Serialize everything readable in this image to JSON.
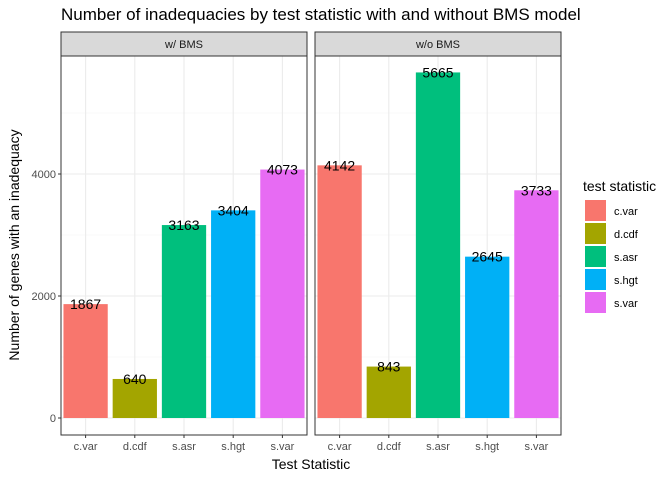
{
  "chart_data": {
    "type": "bar",
    "title": "Number of inadequacies by test statistic with and without BMS model",
    "xlabel": "Test Statistic",
    "ylabel": "Number of genes with an inadequacy",
    "categories": [
      "c.var",
      "d.cdf",
      "s.asr",
      "s.hgt",
      "s.var"
    ],
    "yticks": [
      0,
      2000,
      4000
    ],
    "ylim": [
      0,
      5950
    ],
    "grid": true,
    "legend": {
      "title": "test statistic",
      "placement": "right",
      "entries": [
        "c.var",
        "d.cdf",
        "s.asr",
        "s.hgt",
        "s.var"
      ]
    },
    "colors": [
      "#F8766D",
      "#A3A500",
      "#00BF7D",
      "#00B0F6",
      "#E76BF3"
    ],
    "panels": [
      {
        "name": "w/ BMS",
        "values": [
          1867,
          640,
          3163,
          3404,
          4073
        ]
      },
      {
        "name": "w/o BMS",
        "values": [
          4142,
          843,
          5665,
          2645,
          3733
        ]
      }
    ]
  }
}
